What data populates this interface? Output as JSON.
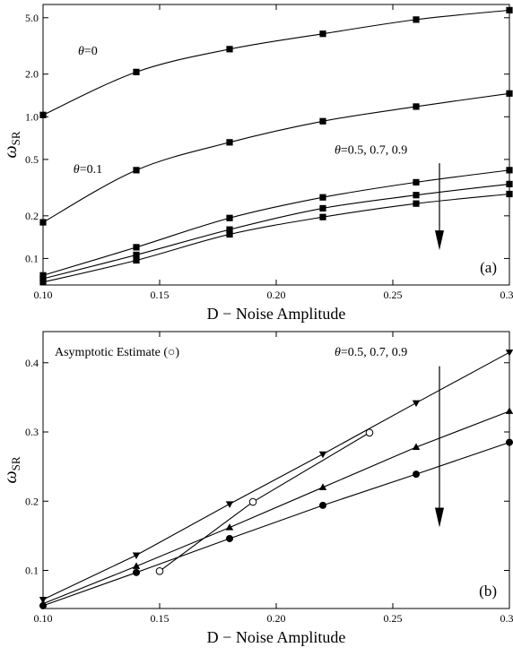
{
  "chart_data": [
    {
      "type": "line",
      "panel_label": "(a)",
      "xlabel": "D − Noise Amplitude",
      "ylabel": "ω",
      "ylabel_sub": "SR",
      "xlim": [
        0.1,
        0.3
      ],
      "ylim": [
        0.065,
        6.2
      ],
      "yscale": "log",
      "xticks": [
        0.1,
        0.15,
        0.2,
        0.25,
        0.3
      ],
      "xtick_labels": [
        "0.10",
        "0.15",
        "0.20",
        "0.25",
        "0.30"
      ],
      "yticks": [
        0.1,
        0.2,
        0.5,
        1.0,
        2.0,
        5.0
      ],
      "ytick_labels": [
        "0.1",
        "0.2",
        "0.5",
        "1.0",
        "2.0",
        "5.0"
      ],
      "x": [
        0.1,
        0.14,
        0.18,
        0.22,
        0.26,
        0.3
      ],
      "marker": "square",
      "series": [
        {
          "values": [
            1.03,
            2.07,
            3.0,
            3.85,
            4.85,
            5.65
          ]
        },
        {
          "values": [
            0.18,
            0.42,
            0.66,
            0.93,
            1.18,
            1.46
          ]
        },
        {
          "values": [
            0.076,
            0.12,
            0.193,
            0.27,
            0.345,
            0.42
          ]
        },
        {
          "values": [
            0.072,
            0.106,
            0.16,
            0.226,
            0.28,
            0.335
          ]
        },
        {
          "values": [
            0.068,
            0.097,
            0.148,
            0.196,
            0.244,
            0.285
          ]
        }
      ],
      "annotations": [
        {
          "text": "θ=0",
          "x": 0.115,
          "y": 2.75
        },
        {
          "text": "θ=0.1",
          "x": 0.113,
          "y": 0.4
        },
        {
          "text": "θ=0.5, 0.7, 0.9",
          "x": 0.225,
          "y": 0.55
        }
      ],
      "arrow": {
        "x": 0.27,
        "y_from": 0.47,
        "y_to": 0.125
      }
    },
    {
      "type": "line",
      "panel_label": "(b)",
      "xlabel": "D − Noise Amplitude",
      "ylabel": "ω",
      "ylabel_sub": "SR",
      "xlim": [
        0.1,
        0.3
      ],
      "ylim": [
        0.045,
        0.445
      ],
      "xticks": [
        0.1,
        0.15,
        0.2,
        0.25,
        0.3
      ],
      "xtick_labels": [
        "0.10",
        "0.15",
        "0.20",
        "0.25",
        "0.30"
      ],
      "yticks": [
        0.1,
        0.2,
        0.3,
        0.4
      ],
      "ytick_labels": [
        "0.1",
        "0.2",
        "0.3",
        "0.4"
      ],
      "series": [
        {
          "marker": "triangle-down",
          "x": [
            0.1,
            0.14,
            0.18,
            0.22,
            0.26,
            0.3
          ],
          "values": [
            0.058,
            0.122,
            0.196,
            0.268,
            0.342,
            0.415
          ]
        },
        {
          "marker": "triangle-up",
          "x": [
            0.1,
            0.14,
            0.18,
            0.22,
            0.26,
            0.3
          ],
          "values": [
            0.052,
            0.106,
            0.162,
            0.22,
            0.278,
            0.33
          ]
        },
        {
          "marker": "circle",
          "x": [
            0.1,
            0.14,
            0.18,
            0.22,
            0.26,
            0.3
          ],
          "values": [
            0.049,
            0.097,
            0.146,
            0.194,
            0.239,
            0.285
          ]
        },
        {
          "marker": "open-circle",
          "x": [
            0.15,
            0.19,
            0.24
          ],
          "values": [
            0.099,
            0.199,
            0.299
          ]
        }
      ],
      "annotations": [
        {
          "text": "Asymptotic Estimate (○)",
          "x": 0.105,
          "y": 0.41
        },
        {
          "text": "θ=0.5, 0.7, 0.9",
          "x": 0.225,
          "y": 0.41
        }
      ],
      "arrow": {
        "x": 0.27,
        "y_from": 0.395,
        "y_to": 0.17
      }
    }
  ]
}
